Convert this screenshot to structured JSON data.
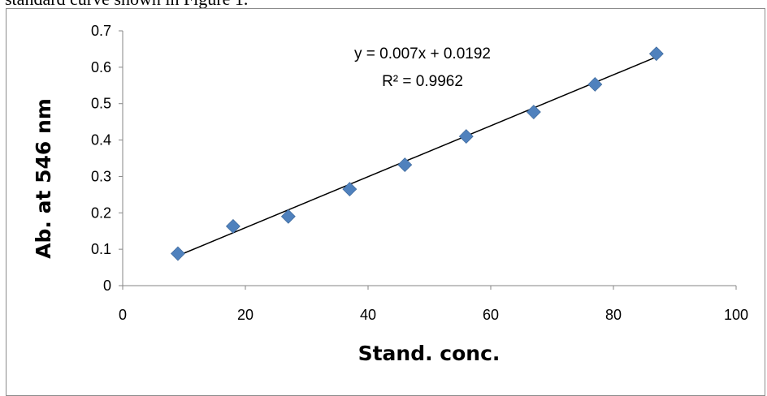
{
  "document": {
    "caption_fragment": "standard curve shown in Figure 1."
  },
  "chart_data": {
    "type": "scatter",
    "xlabel": "Stand. conc.",
    "ylabel": "Ab. at 546 nm",
    "xlim": [
      0,
      100
    ],
    "ylim": [
      0,
      0.7
    ],
    "x_ticks": [
      0,
      20,
      40,
      60,
      80,
      100
    ],
    "y_ticks": [
      0,
      0.1,
      0.2,
      0.3,
      0.4,
      0.5,
      0.6,
      0.7
    ],
    "x_tick_labels": [
      "0",
      "20",
      "40",
      "60",
      "80",
      "100"
    ],
    "y_tick_labels": [
      "0",
      "0.1",
      "0.2",
      "0.3",
      "0.4",
      "0.5",
      "0.6",
      "0.7"
    ],
    "series": [
      {
        "marker": "diamond",
        "color": "#4f81bd",
        "x": [
          9,
          18,
          27,
          37,
          46,
          56,
          67,
          77,
          87
        ],
        "y": [
          0.088,
          0.163,
          0.19,
          0.265,
          0.332,
          0.41,
          0.477,
          0.553,
          0.637
        ]
      }
    ],
    "trendline": {
      "type": "linear",
      "slope": 0.007,
      "intercept": 0.0192,
      "equation": "y = 0.007x + 0.0192",
      "r_squared": "R² = 0.9962",
      "color": "#000000"
    },
    "grid": false,
    "legend": "none"
  }
}
